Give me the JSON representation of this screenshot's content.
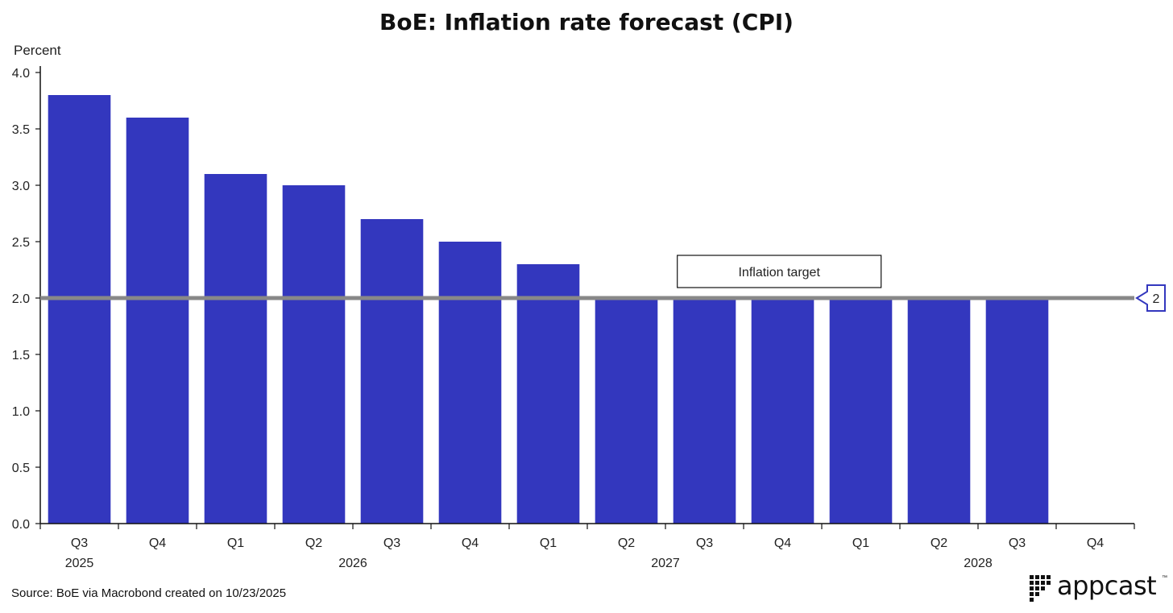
{
  "chart_data": {
    "type": "bar",
    "title": "BoE: Inflation rate forecast (CPI)",
    "ylabel": "Percent",
    "xlabel": "",
    "ylim": [
      0,
      4.0
    ],
    "yticks": [
      "4.0",
      "3.5",
      "3.0",
      "2.5",
      "2.0",
      "1.5",
      "1.0",
      "0.5",
      "0.0"
    ],
    "categories": [
      "Q3",
      "Q4",
      "Q1",
      "Q2",
      "Q3",
      "Q4",
      "Q1",
      "Q2",
      "Q3",
      "Q4",
      "Q1",
      "Q2",
      "Q3",
      "Q4"
    ],
    "years": [
      {
        "label": "2025",
        "under_index": 0
      },
      {
        "label": "2026",
        "under_index": 3.5
      },
      {
        "label": "2027",
        "under_index": 7.5
      },
      {
        "label": "2028",
        "under_index": 11.5
      }
    ],
    "values": [
      3.8,
      3.6,
      3.1,
      3.0,
      2.7,
      2.5,
      2.3,
      2.0,
      2.0,
      2.0,
      2.0,
      2.0,
      2.0,
      null
    ],
    "bar_color": "#3337BE",
    "reference_line": {
      "value": 2.0,
      "label": "Inflation target",
      "tag": "2",
      "color": "#888888",
      "tag_color": "#3337BE"
    },
    "grid": false
  },
  "footer": {
    "source": "Source: BoE via Macrobond created on 10/23/2025"
  },
  "logo": {
    "text": "appcast",
    "tm": "™"
  }
}
